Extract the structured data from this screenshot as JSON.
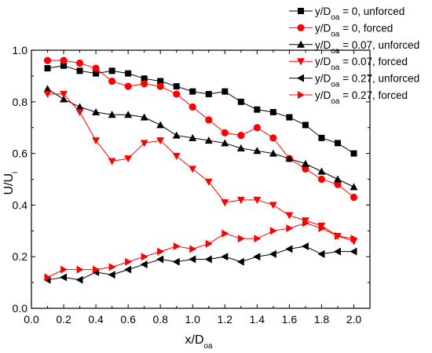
{
  "chart_data": {
    "type": "line",
    "xlabel": {
      "main": "x/D",
      "sub": "oa"
    },
    "ylabel": {
      "main": "U/U",
      "sub": "i"
    },
    "xlim": [
      0.0,
      2.1
    ],
    "ylim": [
      0.0,
      1.0
    ],
    "x_ticks": [
      "0.0",
      "0.2",
      "0.4",
      "0.6",
      "0.8",
      "1.0",
      "1.2",
      "1.4",
      "1.6",
      "1.8",
      "2.0"
    ],
    "y_ticks": [
      "0.0",
      "0.2",
      "0.4",
      "0.6",
      "0.8",
      "1.0"
    ],
    "grid": false,
    "legend_position": "top-right",
    "series": [
      {
        "name": {
          "pre": "y/D",
          "sub": "oa",
          "post": " = 0, unforced"
        },
        "color": "#000000",
        "marker": "square",
        "x": [
          0.1,
          0.2,
          0.3,
          0.4,
          0.5,
          0.6,
          0.7,
          0.8,
          0.9,
          1.0,
          1.1,
          1.2,
          1.3,
          1.4,
          1.5,
          1.6,
          1.7,
          1.8,
          1.9,
          2.0
        ],
        "y": [
          0.93,
          0.94,
          0.92,
          0.91,
          0.92,
          0.91,
          0.89,
          0.88,
          0.86,
          0.84,
          0.83,
          0.84,
          0.8,
          0.77,
          0.76,
          0.74,
          0.71,
          0.66,
          0.64,
          0.6
        ]
      },
      {
        "name": {
          "pre": "y/D",
          "sub": "oa",
          "post": " = 0, forced"
        },
        "color": "#ff0000",
        "marker": "circle",
        "x": [
          0.1,
          0.2,
          0.3,
          0.4,
          0.5,
          0.6,
          0.7,
          0.8,
          0.9,
          1.0,
          1.1,
          1.2,
          1.3,
          1.4,
          1.5,
          1.6,
          1.7,
          1.8,
          1.9,
          2.0
        ],
        "y": [
          0.96,
          0.96,
          0.95,
          0.93,
          0.88,
          0.86,
          0.87,
          0.86,
          0.83,
          0.78,
          0.73,
          0.68,
          0.67,
          0.7,
          0.66,
          0.58,
          0.54,
          0.5,
          0.48,
          0.43
        ]
      },
      {
        "name": {
          "pre": "y/D",
          "sub": "oa",
          "post": " = 0.07, unforced"
        },
        "color": "#000000",
        "marker": "triangle-up",
        "x": [
          0.1,
          0.2,
          0.3,
          0.4,
          0.5,
          0.6,
          0.7,
          0.8,
          0.9,
          1.0,
          1.1,
          1.2,
          1.3,
          1.4,
          1.5,
          1.6,
          1.7,
          1.8,
          1.9,
          2.0
        ],
        "y": [
          0.85,
          0.81,
          0.78,
          0.76,
          0.75,
          0.75,
          0.74,
          0.71,
          0.67,
          0.66,
          0.65,
          0.64,
          0.62,
          0.61,
          0.6,
          0.58,
          0.56,
          0.53,
          0.5,
          0.47
        ]
      },
      {
        "name": {
          "pre": "y/D",
          "sub": "oa",
          "post": " = 0.07, forced"
        },
        "color": "#ff0000",
        "marker": "triangle-down",
        "x": [
          0.1,
          0.2,
          0.3,
          0.4,
          0.5,
          0.6,
          0.7,
          0.8,
          0.9,
          1.0,
          1.1,
          1.2,
          1.3,
          1.4,
          1.5,
          1.6,
          1.7,
          1.8,
          1.9,
          2.0
        ],
        "y": [
          0.83,
          0.83,
          0.76,
          0.65,
          0.57,
          0.58,
          0.64,
          0.65,
          0.59,
          0.54,
          0.49,
          0.41,
          0.42,
          0.42,
          0.4,
          0.36,
          0.34,
          0.32,
          0.28,
          0.26
        ]
      },
      {
        "name": {
          "pre": "y/D",
          "sub": "oa",
          "post": " = 0.27, unforced"
        },
        "color": "#000000",
        "marker": "triangle-left",
        "x": [
          0.1,
          0.2,
          0.3,
          0.4,
          0.5,
          0.6,
          0.7,
          0.8,
          0.9,
          1.0,
          1.1,
          1.2,
          1.3,
          1.4,
          1.5,
          1.6,
          1.7,
          1.8,
          1.9,
          2.0
        ],
        "y": [
          0.11,
          0.12,
          0.11,
          0.14,
          0.13,
          0.15,
          0.17,
          0.19,
          0.18,
          0.19,
          0.19,
          0.2,
          0.18,
          0.2,
          0.21,
          0.23,
          0.24,
          0.21,
          0.22,
          0.22
        ]
      },
      {
        "name": {
          "pre": "y/D",
          "sub": "oa",
          "post": " = 0.27, forced"
        },
        "color": "#ff0000",
        "marker": "triangle-right",
        "x": [
          0.1,
          0.2,
          0.3,
          0.4,
          0.5,
          0.6,
          0.7,
          0.8,
          0.9,
          1.0,
          1.1,
          1.2,
          1.3,
          1.4,
          1.5,
          1.6,
          1.7,
          1.8,
          1.9,
          2.0
        ],
        "y": [
          0.12,
          0.15,
          0.15,
          0.15,
          0.16,
          0.18,
          0.2,
          0.22,
          0.24,
          0.23,
          0.25,
          0.29,
          0.27,
          0.27,
          0.3,
          0.31,
          0.33,
          0.31,
          0.28,
          0.27
        ]
      }
    ]
  }
}
